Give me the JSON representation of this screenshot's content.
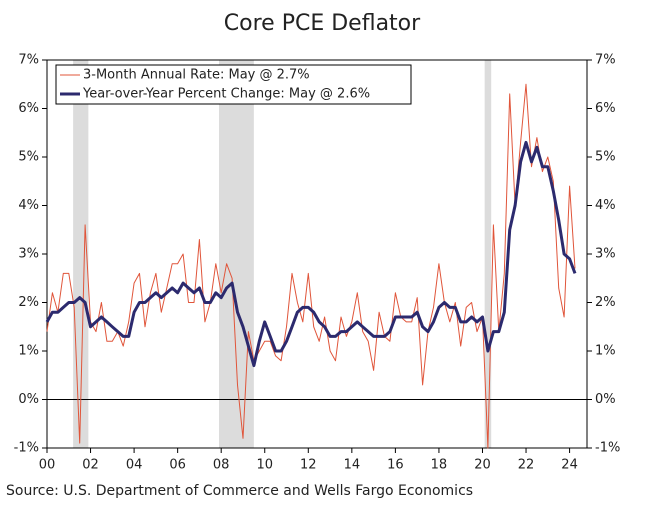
{
  "chart_data": {
    "type": "line",
    "title": "Core PCE Deflator",
    "source": "Source: U.S. Department of Commerce and Wells Fargo Economics",
    "x": [
      2000,
      2000.25,
      2000.5,
      2000.75,
      2001,
      2001.25,
      2001.5,
      2001.75,
      2002,
      2002.25,
      2002.5,
      2002.75,
      2003,
      2003.25,
      2003.5,
      2003.75,
      2004,
      2004.25,
      2004.5,
      2004.75,
      2005,
      2005.25,
      2005.5,
      2005.75,
      2006,
      2006.25,
      2006.5,
      2006.75,
      2007,
      2007.25,
      2007.5,
      2007.75,
      2008,
      2008.25,
      2008.5,
      2008.75,
      2009,
      2009.25,
      2009.5,
      2009.75,
      2010,
      2010.25,
      2010.5,
      2010.75,
      2011,
      2011.25,
      2011.5,
      2011.75,
      2012,
      2012.25,
      2012.5,
      2012.75,
      2013,
      2013.25,
      2013.5,
      2013.75,
      2014,
      2014.25,
      2014.5,
      2014.75,
      2015,
      2015.25,
      2015.5,
      2015.75,
      2016,
      2016.25,
      2016.5,
      2016.75,
      2017,
      2017.25,
      2017.5,
      2017.75,
      2018,
      2018.25,
      2018.5,
      2018.75,
      2019,
      2019.25,
      2019.5,
      2019.75,
      2020,
      2020.25,
      2020.5,
      2020.75,
      2021,
      2021.25,
      2021.5,
      2021.75,
      2022,
      2022.25,
      2022.5,
      2022.75,
      2023,
      2023.25,
      2023.5,
      2023.75,
      2024,
      2024.25
    ],
    "series": [
      {
        "name": "3-Month Annual Rate: May @ 2.7%",
        "color": "#e0553a",
        "width": 1,
        "values": [
          1.4,
          2.2,
          1.8,
          2.6,
          2.6,
          1.9,
          -0.9,
          3.6,
          1.6,
          1.4,
          2.0,
          1.2,
          1.2,
          1.4,
          1.1,
          1.6,
          2.4,
          2.6,
          1.5,
          2.2,
          2.6,
          1.8,
          2.3,
          2.8,
          2.8,
          3.0,
          2.0,
          2.0,
          3.3,
          1.6,
          2.0,
          2.8,
          2.2,
          2.8,
          2.5,
          0.3,
          -0.8,
          1.4,
          0.8,
          1.0,
          1.2,
          1.2,
          0.9,
          0.8,
          1.5,
          2.6,
          2.0,
          1.6,
          2.6,
          1.5,
          1.2,
          1.7,
          1.0,
          0.8,
          1.7,
          1.3,
          1.6,
          2.2,
          1.4,
          1.2,
          0.6,
          1.8,
          1.3,
          1.2,
          2.2,
          1.7,
          1.6,
          1.6,
          2.1,
          0.3,
          1.4,
          1.9,
          2.8,
          2.0,
          1.6,
          2.0,
          1.1,
          1.9,
          2.0,
          1.4,
          1.7,
          -1.0,
          3.6,
          1.4,
          2.6,
          6.3,
          4.0,
          5.3,
          6.5,
          4.8,
          5.4,
          4.7,
          5.0,
          4.5,
          2.3,
          1.7,
          4.4,
          2.7
        ]
      },
      {
        "name": "Year-over-Year Percent Change: May @ 2.6%",
        "color": "#2c2a6e",
        "width": 3,
        "values": [
          1.6,
          1.8,
          1.8,
          1.9,
          2.0,
          2.0,
          2.1,
          2.0,
          1.5,
          1.6,
          1.7,
          1.6,
          1.5,
          1.4,
          1.3,
          1.3,
          1.8,
          2.0,
          2.0,
          2.1,
          2.2,
          2.1,
          2.2,
          2.3,
          2.2,
          2.4,
          2.3,
          2.2,
          2.3,
          2.0,
          2.0,
          2.2,
          2.1,
          2.3,
          2.4,
          1.8,
          1.5,
          1.1,
          0.7,
          1.2,
          1.6,
          1.3,
          1.0,
          1.0,
          1.2,
          1.5,
          1.8,
          1.9,
          1.9,
          1.8,
          1.6,
          1.5,
          1.3,
          1.3,
          1.4,
          1.4,
          1.5,
          1.6,
          1.5,
          1.4,
          1.3,
          1.3,
          1.3,
          1.4,
          1.7,
          1.7,
          1.7,
          1.7,
          1.8,
          1.5,
          1.4,
          1.6,
          1.9,
          2.0,
          1.9,
          1.9,
          1.6,
          1.6,
          1.7,
          1.6,
          1.7,
          1.0,
          1.4,
          1.4,
          1.8,
          3.5,
          4.0,
          4.9,
          5.3,
          4.9,
          5.2,
          4.8,
          4.8,
          4.3,
          3.7,
          3.0,
          2.9,
          2.6
        ]
      }
    ],
    "recessions": [
      [
        2001.2,
        2001.9
      ],
      [
        2007.9,
        2009.5
      ],
      [
        2020.1,
        2020.4
      ]
    ],
    "recession_color": "#dcdcdc",
    "xlim": [
      2000,
      2024.8
    ],
    "xticks": [
      {
        "value": 2000,
        "label": "00"
      },
      {
        "value": 2002,
        "label": "02"
      },
      {
        "value": 2004,
        "label": "04"
      },
      {
        "value": 2006,
        "label": "06"
      },
      {
        "value": 2008,
        "label": "08"
      },
      {
        "value": 2010,
        "label": "10"
      },
      {
        "value": 2012,
        "label": "12"
      },
      {
        "value": 2014,
        "label": "14"
      },
      {
        "value": 2016,
        "label": "16"
      },
      {
        "value": 2018,
        "label": "18"
      },
      {
        "value": 2020,
        "label": "20"
      },
      {
        "value": 2022,
        "label": "22"
      },
      {
        "value": 2024,
        "label": "24"
      }
    ],
    "ylim": [
      -1,
      7
    ],
    "yticks": [
      {
        "value": -1,
        "label": "-1%"
      },
      {
        "value": 0,
        "label": "0%"
      },
      {
        "value": 1,
        "label": "1%"
      },
      {
        "value": 2,
        "label": "2%"
      },
      {
        "value": 3,
        "label": "3%"
      },
      {
        "value": 4,
        "label": "4%"
      },
      {
        "value": 5,
        "label": "5%"
      },
      {
        "value": 6,
        "label": "6%"
      },
      {
        "value": 7,
        "label": "7%"
      }
    ],
    "y2lim": [
      -1,
      7
    ],
    "y2ticks": [
      {
        "value": -1,
        "label": "-1%"
      },
      {
        "value": 0,
        "label": "0%"
      },
      {
        "value": 1,
        "label": "1%"
      },
      {
        "value": 2,
        "label": "2%"
      },
      {
        "value": 3,
        "label": "3%"
      },
      {
        "value": 4,
        "label": "4%"
      },
      {
        "value": 5,
        "label": "5%"
      },
      {
        "value": 6,
        "label": "6%"
      },
      {
        "value": 7,
        "label": "7%"
      }
    ],
    "legend": "upper left"
  }
}
